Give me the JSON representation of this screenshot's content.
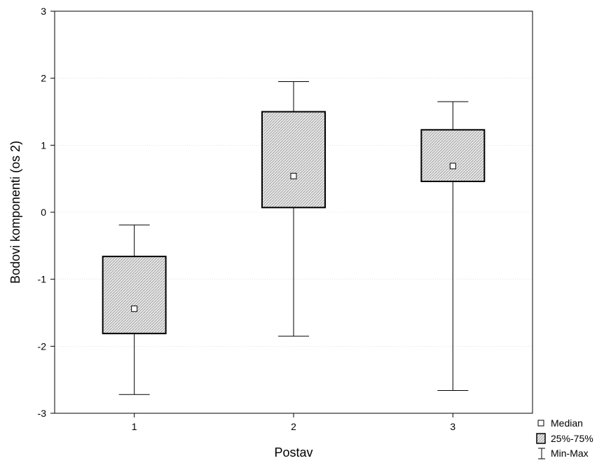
{
  "chart_data": {
    "type": "box",
    "xlabel": "Postav",
    "ylabel": "Bodovi komponenti (os 2)",
    "ylim": [
      -3,
      3
    ],
    "yticks": [
      -3,
      -2,
      -1,
      0,
      1,
      2,
      3
    ],
    "categories": [
      "1",
      "2",
      "3"
    ],
    "boxes": [
      {
        "category": "1",
        "min": -2.72,
        "q1": -1.81,
        "median": -1.44,
        "q3": -0.66,
        "max": -0.19
      },
      {
        "category": "2",
        "min": -1.85,
        "q1": 0.07,
        "median": 0.54,
        "q3": 1.5,
        "max": 1.95
      },
      {
        "category": "3",
        "min": -2.66,
        "q1": 0.46,
        "median": 0.69,
        "q3": 1.23,
        "max": 1.65
      }
    ],
    "grid": true,
    "legend_position": "bottom-right outside",
    "legend": {
      "median": "Median",
      "box": "25%-75%",
      "whisker": "Min-Max"
    },
    "box_fill": "#d4d4d4",
    "line_color": "#000000"
  }
}
